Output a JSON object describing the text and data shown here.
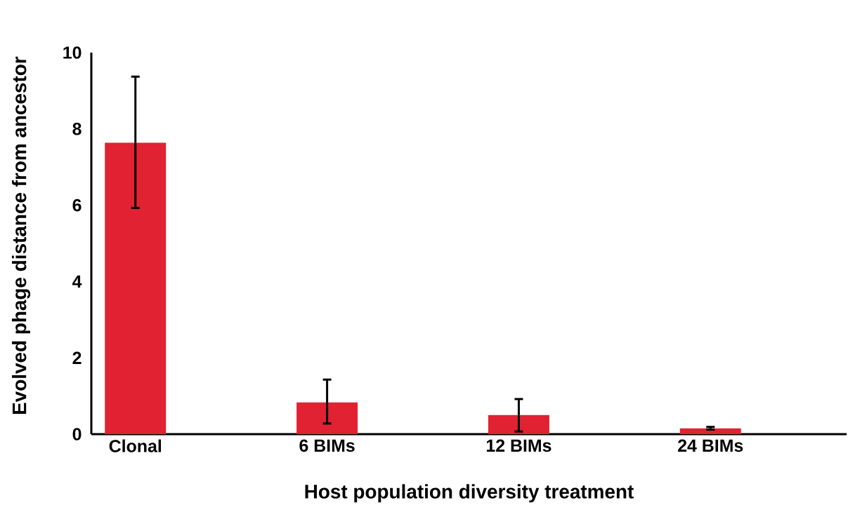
{
  "chart_data": {
    "type": "bar",
    "xlabel": "Host population diversity treatment",
    "ylabel": "Evolved phage distance from ancestor",
    "categories": [
      "Clonal",
      "6 BIMs",
      "12 BIMs",
      "24 BIMs"
    ],
    "values": [
      7.64,
      0.83,
      0.5,
      0.15
    ],
    "errors": [
      [
        5.93,
        9.37
      ],
      [
        0.28,
        1.43
      ],
      [
        0.07,
        0.92
      ],
      [
        0.12,
        0.19
      ]
    ],
    "color": "#e02233",
    "ylim": [
      0,
      10
    ],
    "yticks": [
      0,
      2,
      4,
      6,
      8,
      10
    ]
  }
}
